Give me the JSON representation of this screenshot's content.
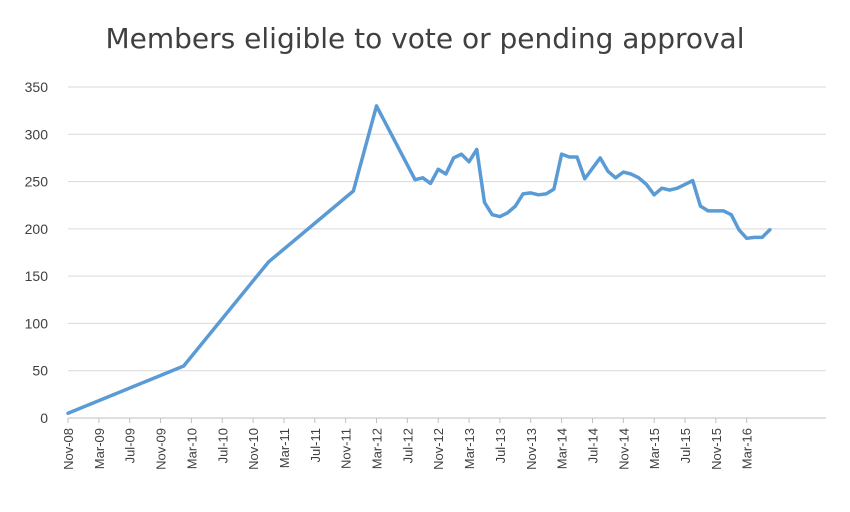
{
  "chart_data": {
    "type": "line",
    "title": "Members eligible to vote or pending approval",
    "xlabel": "",
    "ylabel": "",
    "ylim": [
      0,
      350
    ],
    "yticks": [
      0,
      50,
      100,
      150,
      200,
      250,
      300,
      350
    ],
    "xticks": [
      "Nov-08",
      "Mar-09",
      "Jul-09",
      "Nov-09",
      "Mar-10",
      "Jul-10",
      "Nov-10",
      "Mar-11",
      "Jul-11",
      "Nov-11",
      "Mar-12",
      "Jul-12",
      "Nov-12",
      "Mar-13",
      "Jul-13",
      "Nov-13",
      "Mar-14",
      "Jul-14",
      "Nov-14",
      "Mar-15",
      "Jul-15",
      "Nov-15",
      "Mar-16"
    ],
    "grid": true,
    "legend": "none",
    "line_color": "#5b9bd5",
    "series": [
      {
        "x": [
          "2008-11",
          "2010-02",
          "2011-01",
          "2011-12",
          "2012-03",
          "2012-08",
          "2012-09",
          "2012-10",
          "2012-11",
          "2012-12",
          "2013-01",
          "2013-02",
          "2013-03",
          "2013-04",
          "2013-05",
          "2013-06",
          "2013-07",
          "2013-08",
          "2013-09",
          "2013-10",
          "2013-11",
          "2013-12",
          "2014-01",
          "2014-02",
          "2014-03",
          "2014-04",
          "2014-05",
          "2014-06",
          "2014-07",
          "2014-08",
          "2014-09",
          "2014-10",
          "2014-11",
          "2014-12",
          "2015-01",
          "2015-02",
          "2015-03",
          "2015-04",
          "2015-05",
          "2015-06",
          "2015-07",
          "2015-08",
          "2015-09",
          "2015-10",
          "2015-11",
          "2015-12",
          "2016-01",
          "2016-02",
          "2016-03",
          "2016-04",
          "2016-05",
          "2016-06"
        ],
        "values": [
          5,
          55,
          165,
          240,
          330,
          252,
          254,
          248,
          263,
          258,
          275,
          279,
          271,
          284,
          228,
          215,
          213,
          217,
          224,
          237,
          238,
          236,
          237,
          242,
          279,
          276,
          276,
          253,
          264,
          275,
          261,
          254,
          260,
          258,
          254,
          247,
          236,
          243,
          241,
          243,
          247,
          251,
          224,
          219,
          219,
          219,
          215,
          199,
          190,
          191,
          191,
          199
        ]
      }
    ]
  }
}
